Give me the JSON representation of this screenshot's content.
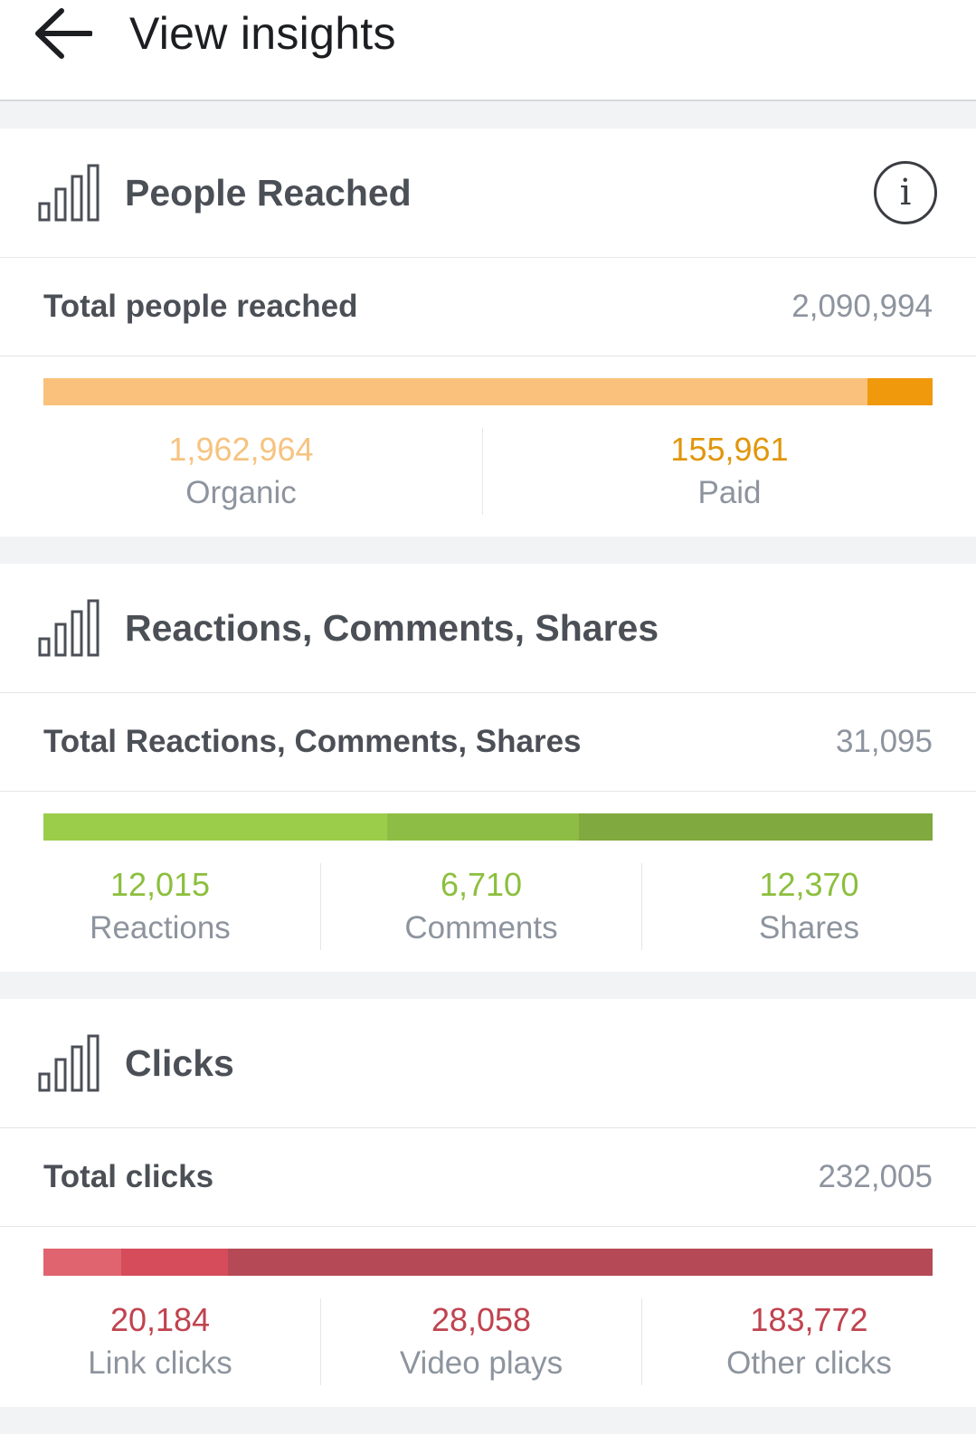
{
  "header": {
    "title": "View insights"
  },
  "sections": [
    {
      "title": "People Reached",
      "total_label": "Total people reached",
      "total_value": "2,090,994",
      "stats": [
        {
          "value": "1,962,964",
          "label": "Organic",
          "raw": 1962964,
          "color": "#f9c17b"
        },
        {
          "value": "155,961",
          "label": "Paid",
          "raw": 155961,
          "color": "#f0990c"
        }
      ]
    },
    {
      "title": "Reactions, Comments, Shares",
      "total_label": "Total Reactions, Comments, Shares",
      "total_value": "31,095",
      "stats": [
        {
          "value": "12,015",
          "label": "Reactions",
          "raw": 12015,
          "color": "#9bcd4b"
        },
        {
          "value": "6,710",
          "label": "Comments",
          "raw": 6710,
          "color": "#8ebd45"
        },
        {
          "value": "12,370",
          "label": "Shares",
          "raw": 12370,
          "color": "#80a93f"
        }
      ]
    },
    {
      "title": "Clicks",
      "total_label": "Total clicks",
      "total_value": "232,005",
      "stats": [
        {
          "value": "20,184",
          "label": "Link clicks",
          "raw": 20184,
          "color": "#e0646f"
        },
        {
          "value": "28,058",
          "label": "Video plays",
          "raw": 28058,
          "color": "#d64c5a"
        },
        {
          "value": "183,772",
          "label": "Other clicks",
          "raw": 183772,
          "color": "#b54a56"
        }
      ]
    }
  ],
  "colors": {
    "organic_text": "#f6c380",
    "paid_text": "#e1960b",
    "green_text": "#8cbf3e",
    "red_text": "#c0434f"
  }
}
